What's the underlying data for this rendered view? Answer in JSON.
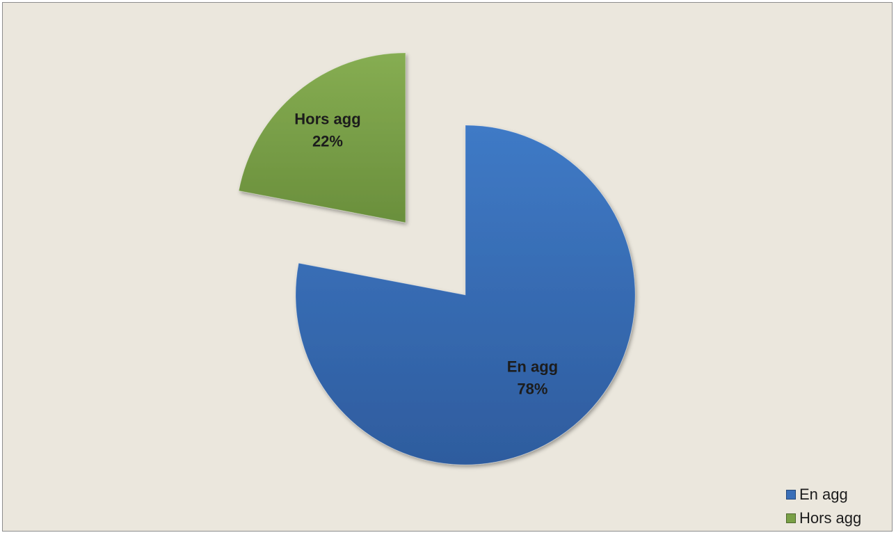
{
  "chart_data": {
    "type": "pie",
    "title": "",
    "slices": [
      {
        "name": "En agg",
        "value": 78,
        "label": "En agg",
        "pct_label": "78%",
        "color": "#3a6fb8",
        "exploded": false
      },
      {
        "name": "Hors agg",
        "value": 22,
        "label": "Hors agg",
        "pct_label": "22%",
        "color": "#79a046",
        "exploded": true
      }
    ],
    "legend_position": "bottom-right",
    "legend": [
      "En agg",
      "Hors agg"
    ]
  }
}
